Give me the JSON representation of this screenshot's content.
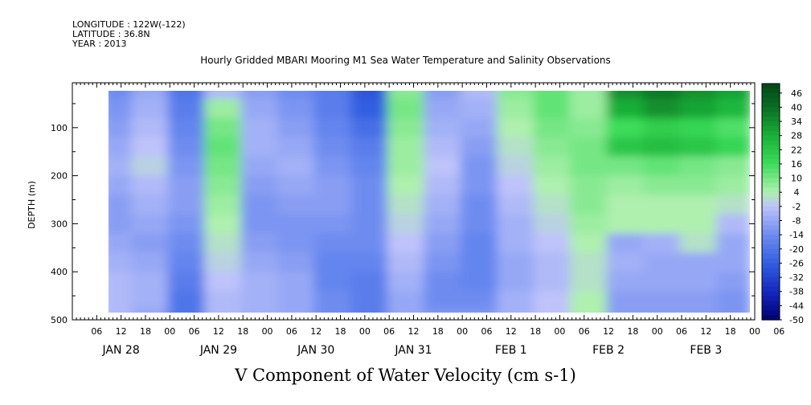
{
  "header": {
    "longitude": "LONGITUDE : 122W(-122)",
    "latitude": "LATITUDE : 36.8N",
    "year": "YEAR : 2013"
  },
  "chart_data": {
    "type": "heatmap",
    "title": "Hourly Gridded MBARI Mooring M1 Sea Water Temperature and Salinity Observations",
    "xlabel": "V Component of Water Velocity (cm s-1)",
    "ylabel": "DEPTH (m)",
    "ylim": [
      500,
      20
    ],
    "y_ticks": [
      100,
      200,
      300,
      400,
      500
    ],
    "x_hour_ticks": [
      "06",
      "12",
      "18",
      "00",
      "06",
      "12",
      "18",
      "00",
      "06",
      "12",
      "18",
      "00",
      "06",
      "12",
      "18",
      "00",
      "06",
      "12",
      "18",
      "00",
      "06",
      "12",
      "18",
      "00",
      "06",
      "12",
      "18",
      "00",
      "06"
    ],
    "date_labels": [
      "JAN 28",
      "JAN 29",
      "JAN 30",
      "JAN 31",
      "FEB  1",
      "FEB  2",
      "FEB  3"
    ],
    "colorbar_levels": [
      "46",
      "40",
      "34",
      "28",
      "22",
      "16",
      "10",
      "4",
      "-2",
      "-8",
      "-14",
      "-20",
      "-26",
      "-32",
      "-38",
      "-44",
      "-50"
    ],
    "colorbar_range": [
      -50,
      50
    ],
    "time_span_days": [
      0,
      7
    ],
    "data_start_day": 0.375,
    "data_end_day": 6.875,
    "depths_m": [
      20,
      60,
      100,
      140,
      180,
      220,
      260,
      300,
      340,
      380,
      420,
      460,
      490
    ],
    "columns_day": [
      0.42,
      0.79,
      1.17,
      1.54,
      1.92,
      2.29,
      2.67,
      3.04,
      3.42,
      3.79,
      4.17,
      4.54,
      4.92,
      5.29,
      5.67,
      6.04,
      6.42,
      6.79
    ],
    "velocity_grid": [
      [
        -14,
        -8,
        -20,
        -4,
        -10,
        -14,
        -18,
        -28,
        8,
        -10,
        -4,
        8,
        12,
        6,
        34,
        38,
        34,
        30
      ],
      [
        -12,
        -6,
        -18,
        6,
        -8,
        -12,
        -18,
        -26,
        10,
        -8,
        -6,
        6,
        12,
        6,
        28,
        34,
        30,
        26
      ],
      [
        -10,
        -4,
        -16,
        10,
        -6,
        -10,
        -16,
        -22,
        8,
        -6,
        -8,
        4,
        10,
        8,
        16,
        20,
        18,
        14
      ],
      [
        -8,
        -2,
        -14,
        12,
        -6,
        -8,
        -14,
        -18,
        6,
        -4,
        -10,
        2,
        8,
        10,
        22,
        24,
        22,
        18
      ],
      [
        -6,
        0,
        -12,
        10,
        -8,
        -6,
        -12,
        -16,
        6,
        -2,
        -12,
        0,
        6,
        10,
        10,
        12,
        10,
        8
      ],
      [
        -8,
        -4,
        -10,
        8,
        -10,
        -8,
        -10,
        -14,
        4,
        -4,
        -12,
        -2,
        4,
        8,
        6,
        8,
        8,
        6
      ],
      [
        -10,
        -6,
        -10,
        6,
        -12,
        -10,
        -10,
        -14,
        2,
        -6,
        -14,
        -4,
        2,
        8,
        4,
        4,
        4,
        2
      ],
      [
        -10,
        -8,
        -12,
        4,
        -12,
        -12,
        -12,
        -14,
        0,
        -8,
        -14,
        -6,
        0,
        6,
        4,
        4,
        4,
        -4
      ],
      [
        -8,
        -10,
        -14,
        2,
        -10,
        -12,
        -14,
        -14,
        -2,
        -10,
        -16,
        -6,
        -2,
        4,
        -8,
        -6,
        2,
        -8
      ],
      [
        -6,
        -8,
        -16,
        0,
        -8,
        -10,
        -16,
        -16,
        -4,
        -12,
        -16,
        -8,
        -4,
        2,
        -6,
        -8,
        -8,
        -8
      ],
      [
        -4,
        -6,
        -18,
        -2,
        -6,
        -8,
        -16,
        -18,
        -6,
        -14,
        -16,
        -8,
        -4,
        2,
        -8,
        -8,
        -8,
        -10
      ],
      [
        -4,
        -6,
        -20,
        -4,
        -6,
        -8,
        -14,
        -18,
        -8,
        -14,
        -14,
        -6,
        -2,
        4,
        -10,
        -10,
        -10,
        -12
      ],
      [
        -4,
        -8,
        -20,
        -4,
        -6,
        -8,
        -14,
        -18,
        -8,
        -12,
        -12,
        -6,
        -2,
        4,
        -10,
        -10,
        -10,
        -12
      ]
    ]
  }
}
